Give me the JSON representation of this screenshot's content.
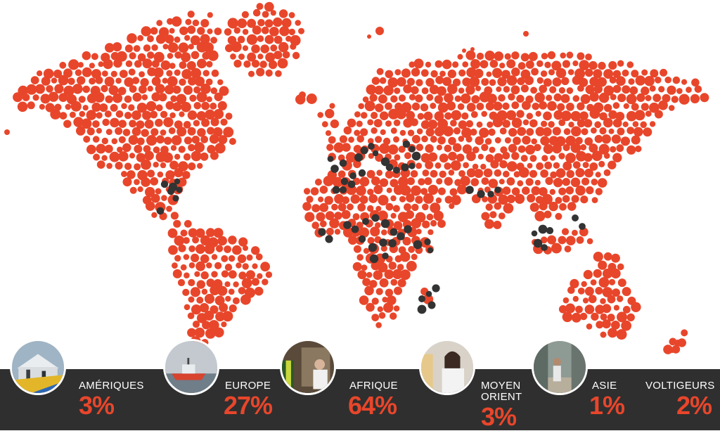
{
  "colors": {
    "dot": "#e8462b",
    "highlight": "#333333",
    "bar": "#2f2f2f",
    "label": "#ffffff",
    "value": "#e8462b"
  },
  "regions": [
    {
      "label": "AMÉRIQUES",
      "value": "3%",
      "photo": "tent-camp-photo"
    },
    {
      "label": "EUROPE",
      "value": "27%",
      "photo": "rescue-ship-photo"
    },
    {
      "label": "AFRIQUE",
      "value": "64%",
      "photo": "warehouse-workers-photo"
    },
    {
      "label": "MOYEN\nORIENT",
      "value": "3%",
      "photo": "office-woman-photo"
    },
    {
      "label": "ASIE",
      "value": "1%",
      "photo": "street-man-photo"
    },
    {
      "label": "VOLTIGEURS",
      "value": "2%",
      "photo": ""
    }
  ]
}
